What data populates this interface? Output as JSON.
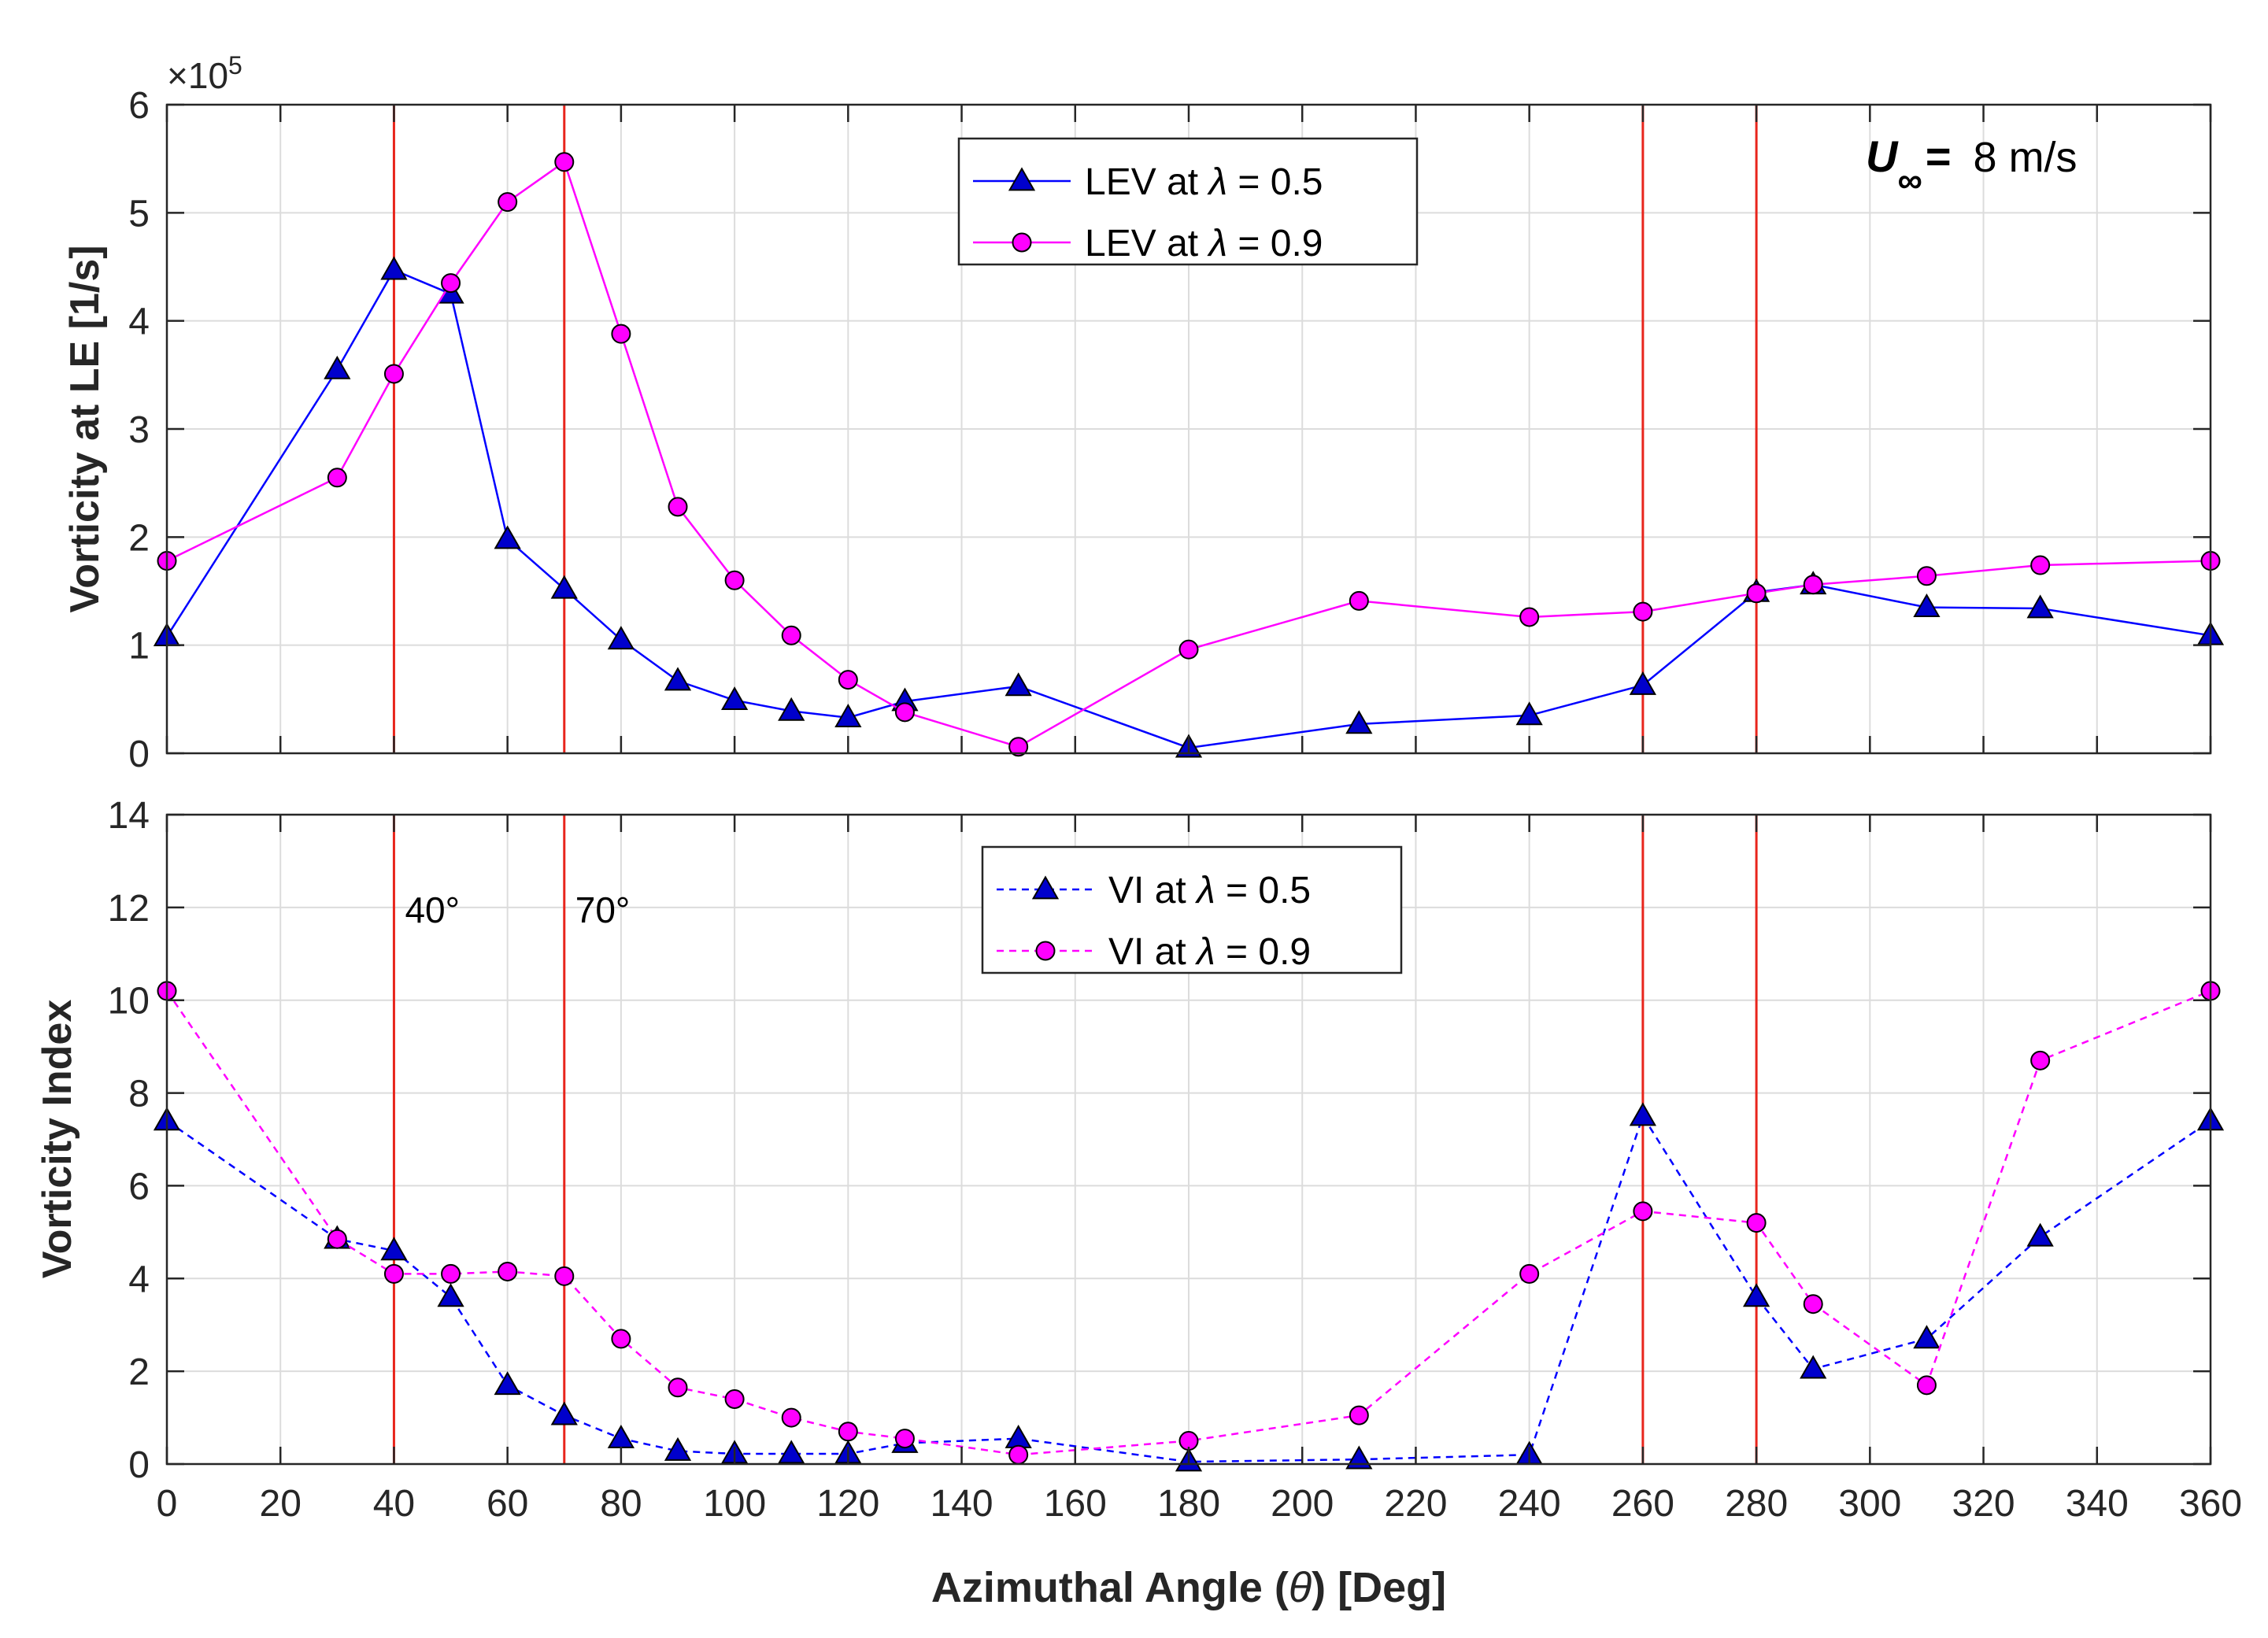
{
  "chart_data": [
    {
      "type": "line",
      "panel": "top",
      "title": "",
      "xlabel": "",
      "ylabel": "Vorticity at  LE [1/s]",
      "xlim": [
        0,
        360
      ],
      "ylim": [
        0,
        6
      ],
      "y_multiplier": "10",
      "y_multiplier_exp": "5",
      "y_multiplier_prefix": "×",
      "xticks": [
        0,
        20,
        40,
        60,
        80,
        100,
        120,
        140,
        160,
        180,
        200,
        220,
        240,
        260,
        280,
        300,
        320,
        340,
        360
      ],
      "yticks": [
        0,
        1,
        2,
        3,
        4,
        5,
        6
      ],
      "show_xtick_labels": false,
      "grid": true,
      "legend_position": "top-center",
      "annotation": {
        "symbol": "U",
        "subscript": "∞",
        "equals": "=",
        "value": "8 m/s"
      },
      "series": [
        {
          "name": "LEV at λ = 0.5",
          "legend_prefix": "LEV at ",
          "legend_symbol": "λ",
          "legend_suffix": " = 0.5",
          "color": "#0000ff",
          "marker": "triangle",
          "marker_fill": "#0000cc",
          "line_style": "solid",
          "x": [
            0,
            30,
            40,
            50,
            60,
            70,
            80,
            90,
            100,
            110,
            120,
            130,
            150,
            180,
            210,
            240,
            260,
            280,
            290,
            310,
            330,
            360
          ],
          "y": [
            1.08,
            3.55,
            4.47,
            4.25,
            1.98,
            1.52,
            1.05,
            0.67,
            0.49,
            0.39,
            0.33,
            0.48,
            0.62,
            0.05,
            0.27,
            0.35,
            0.63,
            1.49,
            1.56,
            1.35,
            1.34,
            1.09
          ]
        },
        {
          "name": "LEV at λ = 0.9",
          "legend_prefix": "LEV at ",
          "legend_symbol": "λ",
          "legend_suffix": " = 0.9",
          "color": "#ff00ff",
          "marker": "circle",
          "marker_fill": "#ff00ff",
          "line_style": "solid",
          "x": [
            0,
            30,
            40,
            50,
            60,
            70,
            80,
            90,
            100,
            110,
            120,
            130,
            150,
            180,
            210,
            240,
            260,
            280,
            290,
            310,
            330,
            360
          ],
          "y": [
            1.78,
            2.55,
            3.51,
            4.35,
            5.1,
            5.47,
            3.88,
            2.28,
            1.6,
            1.09,
            0.68,
            0.38,
            0.06,
            0.96,
            1.41,
            1.26,
            1.31,
            1.48,
            1.56,
            1.64,
            1.74,
            1.78
          ]
        }
      ],
      "vertical_lines": [
        40,
        70,
        260,
        280
      ],
      "vertical_line_color": "#e8251c"
    },
    {
      "type": "line",
      "panel": "bottom",
      "title": "",
      "xlabel": "Azimuthal Angle (θ)  [Deg]",
      "xlabel_prefix": "Azimuthal Angle (",
      "xlabel_symbol": "θ",
      "xlabel_suffix": ")  [Deg]",
      "ylabel": "Vorticity Index",
      "xlim": [
        0,
        360
      ],
      "ylim": [
        0,
        14
      ],
      "xticks": [
        0,
        20,
        40,
        60,
        80,
        100,
        120,
        140,
        160,
        180,
        200,
        220,
        240,
        260,
        280,
        300,
        320,
        340,
        360
      ],
      "yticks": [
        0,
        2,
        4,
        6,
        8,
        10,
        12,
        14
      ],
      "show_xtick_labels": true,
      "grid": true,
      "legend_position": "top-center",
      "line_labels": [
        {
          "x": 40,
          "text": "40°"
        },
        {
          "x": 70,
          "text": "70°"
        }
      ],
      "series": [
        {
          "name": "VI at λ = 0.5",
          "legend_prefix": "VI at ",
          "legend_symbol": "λ",
          "legend_suffix": " = 0.5",
          "color": "#0000ff",
          "marker": "triangle",
          "marker_fill": "#0000cc",
          "line_style": "dashed",
          "x": [
            0,
            30,
            40,
            50,
            60,
            70,
            80,
            90,
            100,
            110,
            120,
            130,
            150,
            180,
            210,
            240,
            260,
            280,
            290,
            310,
            330,
            360
          ],
          "y": [
            7.4,
            4.85,
            4.6,
            3.6,
            1.7,
            1.05,
            0.55,
            0.28,
            0.22,
            0.22,
            0.22,
            0.45,
            0.55,
            0.05,
            0.1,
            0.2,
            7.5,
            3.6,
            2.05,
            2.7,
            4.9,
            7.4
          ]
        },
        {
          "name": "VI at λ = 0.9",
          "legend_prefix": "VI at ",
          "legend_symbol": "λ",
          "legend_suffix": " = 0.9",
          "color": "#ff00ff",
          "marker": "circle",
          "marker_fill": "#ff00ff",
          "line_style": "dashed",
          "x": [
            0,
            30,
            40,
            50,
            60,
            70,
            80,
            90,
            100,
            110,
            120,
            130,
            150,
            180,
            210,
            240,
            260,
            280,
            290,
            310,
            330,
            360
          ],
          "y": [
            10.2,
            4.85,
            4.1,
            4.1,
            4.15,
            4.05,
            2.7,
            1.65,
            1.4,
            1.0,
            0.7,
            0.55,
            0.2,
            0.5,
            1.05,
            4.1,
            5.45,
            5.2,
            3.45,
            1.7,
            8.7,
            10.2
          ]
        }
      ],
      "vertical_lines": [
        40,
        70,
        260,
        280
      ],
      "vertical_line_color": "#e8251c"
    }
  ]
}
